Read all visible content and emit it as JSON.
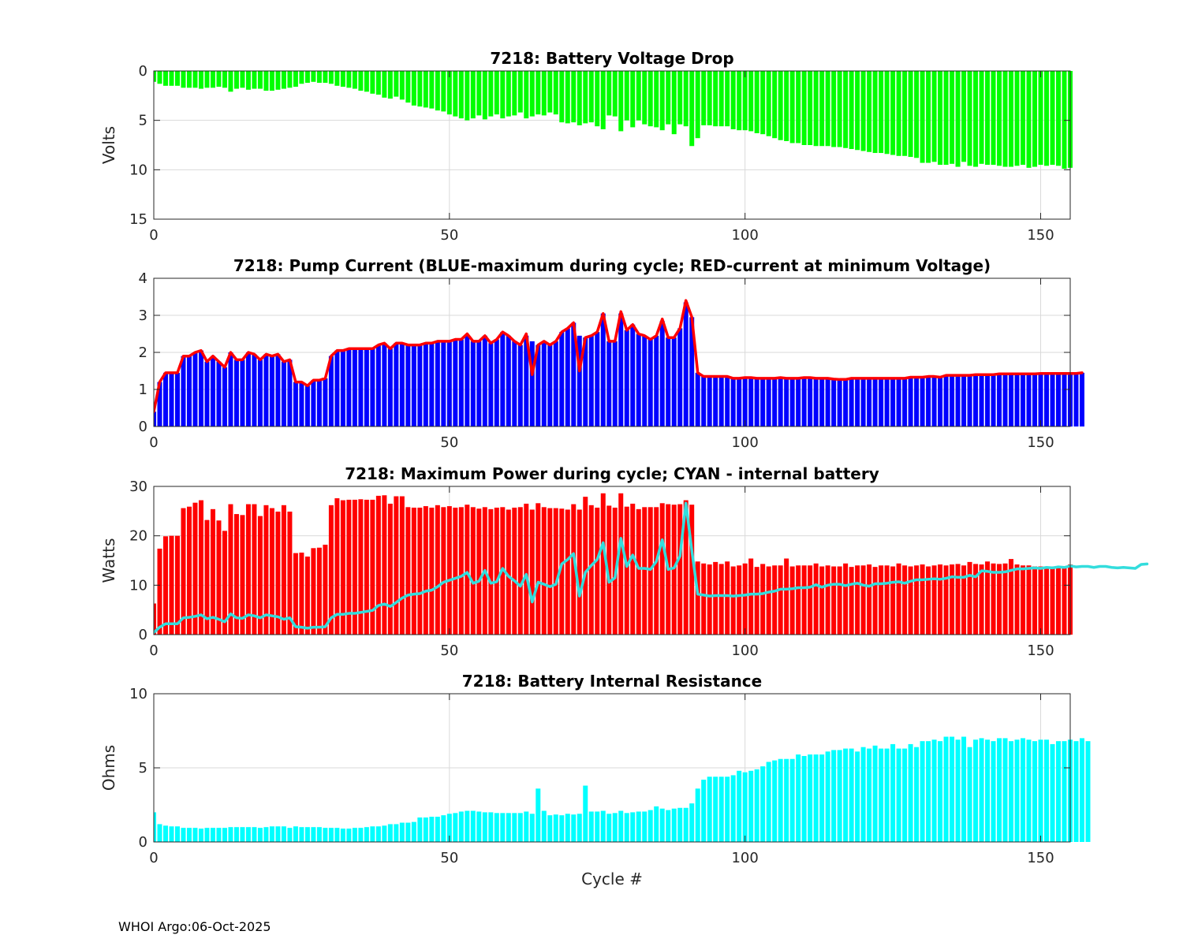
{
  "footer": "WHOI Argo:06-Oct-2025",
  "colors": {
    "green": "#00ff00",
    "blue": "#0000ff",
    "red": "#ff0000",
    "cyan": "#00ffff",
    "cyan_line": "#33dddd",
    "grid": "#d9d9d9"
  },
  "chart_data": [
    {
      "type": "bar",
      "title": "7218: Battery Voltage Drop",
      "ylabel": "Volts",
      "xlabel": "",
      "xlim": [
        0,
        155
      ],
      "ylim": [
        0,
        15
      ],
      "y_reversed": true,
      "xticks": [
        0,
        50,
        100,
        150
      ],
      "yticks": [
        0,
        5,
        10,
        15
      ],
      "grid": true,
      "color": "green",
      "series": [
        {
          "name": "voltage_drop",
          "values": [
            1.1,
            1.3,
            1.5,
            1.5,
            1.5,
            1.7,
            1.7,
            1.7,
            1.8,
            1.7,
            1.7,
            1.6,
            1.7,
            2.1,
            1.8,
            1.7,
            1.9,
            1.8,
            1.8,
            2.0,
            2.0,
            1.9,
            1.8,
            1.7,
            1.6,
            1.3,
            1.2,
            1.1,
            1.2,
            1.2,
            1.3,
            1.5,
            1.6,
            1.7,
            1.8,
            2.0,
            2.1,
            2.3,
            2.4,
            2.7,
            2.8,
            2.6,
            2.9,
            3.2,
            3.5,
            3.6,
            3.7,
            3.8,
            4.0,
            4.1,
            4.4,
            4.6,
            4.8,
            5.0,
            4.8,
            4.5,
            4.9,
            4.6,
            4.4,
            4.8,
            4.6,
            4.5,
            4.2,
            4.8,
            4.6,
            4.4,
            4.5,
            4.2,
            4.4,
            5.2,
            5.3,
            5.2,
            5.5,
            5.3,
            5.2,
            5.6,
            5.9,
            4.5,
            4.6,
            6.1,
            5.0,
            5.7,
            5.0,
            5.4,
            5.6,
            5.7,
            6.0,
            5.4,
            6.4,
            5.4,
            5.6,
            7.6,
            6.8,
            5.5,
            5.5,
            5.6,
            5.6,
            5.6,
            5.9,
            6.0,
            6.0,
            6.1,
            6.3,
            6.4,
            6.6,
            6.8,
            7.0,
            7.1,
            7.3,
            7.3,
            7.5,
            7.5,
            7.6,
            7.6,
            7.6,
            7.7,
            7.7,
            7.8,
            7.9,
            8.0,
            8.1,
            8.2,
            8.3,
            8.3,
            8.4,
            8.5,
            8.6,
            8.6,
            8.7,
            8.8,
            9.3,
            9.3,
            9.2,
            9.5,
            9.5,
            9.4,
            9.7,
            9.2,
            9.6,
            9.7,
            9.4,
            9.5,
            9.5,
            9.6,
            9.7,
            9.7,
            9.6,
            9.5,
            9.8,
            9.7,
            9.5,
            9.6,
            9.5,
            9.6,
            9.9,
            9.8
          ]
        }
      ]
    },
    {
      "type": "bar",
      "title": "7218: Pump Current (BLUE-maximum during cycle; RED-current at minimum Voltage)",
      "ylabel": "",
      "xlabel": "",
      "xlim": [
        0,
        155
      ],
      "ylim": [
        0,
        4
      ],
      "xticks": [
        0,
        50,
        100,
        150
      ],
      "yticks": [
        0,
        1,
        2,
        3,
        4
      ],
      "grid": true,
      "series": [
        {
          "name": "maximum during cycle",
          "color": "blue",
          "type": "bar",
          "values": [
            0.4,
            1.2,
            1.45,
            1.45,
            1.45,
            1.9,
            1.9,
            2.0,
            2.05,
            1.75,
            1.9,
            1.75,
            1.6,
            2.0,
            1.8,
            1.8,
            2.0,
            1.95,
            1.8,
            1.95,
            1.9,
            1.95,
            1.75,
            1.8,
            1.2,
            1.2,
            1.1,
            1.25,
            1.25,
            1.3,
            1.9,
            2.05,
            2.05,
            2.1,
            2.1,
            2.1,
            2.1,
            2.1,
            2.2,
            2.25,
            2.1,
            2.25,
            2.25,
            2.2,
            2.2,
            2.2,
            2.25,
            2.25,
            2.3,
            2.3,
            2.3,
            2.35,
            2.35,
            2.45,
            2.3,
            2.3,
            2.45,
            2.25,
            2.35,
            2.55,
            2.45,
            2.3,
            2.2,
            2.45,
            2.3,
            2.2,
            2.3,
            2.2,
            2.3,
            2.55,
            2.65,
            2.8,
            2.45,
            2.4,
            2.45,
            2.55,
            3.05,
            2.3,
            2.3,
            3.05,
            2.6,
            2.75,
            2.5,
            2.45,
            2.35,
            2.45,
            2.85,
            2.4,
            2.4,
            2.65,
            3.35,
            2.95,
            1.45,
            1.35,
            1.35,
            1.35,
            1.35,
            1.35,
            1.3,
            1.3,
            1.32,
            1.32,
            1.3,
            1.3,
            1.3,
            1.3,
            1.32,
            1.3,
            1.3,
            1.3,
            1.32,
            1.32,
            1.3,
            1.3,
            1.3,
            1.28,
            1.27,
            1.27,
            1.3,
            1.3,
            1.3,
            1.3,
            1.3,
            1.3,
            1.3,
            1.3,
            1.3,
            1.3,
            1.33,
            1.33,
            1.33,
            1.35,
            1.35,
            1.33,
            1.38,
            1.38,
            1.38,
            1.38,
            1.38,
            1.4,
            1.4,
            1.4,
            1.4,
            1.42,
            1.42,
            1.42,
            1.42,
            1.42,
            1.42,
            1.42,
            1.43,
            1.43,
            1.43,
            1.43,
            1.43,
            1.43,
            1.43,
            1.45
          ]
        },
        {
          "name": "current at minimum Voltage",
          "color": "red",
          "type": "line",
          "values": [
            0.4,
            1.2,
            1.45,
            1.45,
            1.45,
            1.9,
            1.9,
            2.0,
            2.05,
            1.75,
            1.9,
            1.75,
            1.6,
            2.0,
            1.8,
            1.8,
            2.0,
            1.95,
            1.8,
            1.95,
            1.9,
            1.95,
            1.75,
            1.8,
            1.2,
            1.2,
            1.1,
            1.25,
            1.25,
            1.3,
            1.9,
            2.05,
            2.05,
            2.1,
            2.1,
            2.1,
            2.1,
            2.1,
            2.2,
            2.25,
            2.1,
            2.25,
            2.25,
            2.2,
            2.2,
            2.2,
            2.25,
            2.25,
            2.3,
            2.3,
            2.3,
            2.35,
            2.35,
            2.5,
            2.3,
            2.3,
            2.45,
            2.25,
            2.35,
            2.55,
            2.45,
            2.3,
            2.2,
            2.5,
            1.4,
            2.2,
            2.3,
            2.2,
            2.3,
            2.55,
            2.65,
            2.8,
            1.5,
            2.4,
            2.45,
            2.55,
            3.05,
            2.3,
            2.3,
            3.1,
            2.6,
            2.75,
            2.5,
            2.45,
            2.35,
            2.45,
            2.9,
            2.4,
            2.4,
            2.65,
            3.4,
            2.95,
            1.45,
            1.35,
            1.35,
            1.35,
            1.35,
            1.35,
            1.3,
            1.3,
            1.32,
            1.32,
            1.3,
            1.3,
            1.3,
            1.3,
            1.32,
            1.3,
            1.3,
            1.3,
            1.32,
            1.32,
            1.3,
            1.3,
            1.3,
            1.28,
            1.27,
            1.27,
            1.3,
            1.3,
            1.3,
            1.3,
            1.3,
            1.3,
            1.3,
            1.3,
            1.3,
            1.3,
            1.33,
            1.33,
            1.33,
            1.35,
            1.35,
            1.33,
            1.38,
            1.38,
            1.38,
            1.38,
            1.38,
            1.4,
            1.4,
            1.4,
            1.4,
            1.42,
            1.42,
            1.42,
            1.42,
            1.42,
            1.42,
            1.42,
            1.43,
            1.43,
            1.43,
            1.43,
            1.43,
            1.43,
            1.43,
            1.45
          ]
        }
      ]
    },
    {
      "type": "bar",
      "title": "7218: Maximum Power during cycle; CYAN - internal battery",
      "ylabel": "Watts",
      "xlabel": "",
      "xlim": [
        0,
        155
      ],
      "ylim": [
        0,
        30
      ],
      "xticks": [
        0,
        50,
        100,
        150
      ],
      "yticks": [
        0,
        10,
        20,
        30
      ],
      "grid": true,
      "series": [
        {
          "name": "maximum power",
          "color": "red",
          "type": "bar",
          "values": [
            6.3,
            17.4,
            19.9,
            20.0,
            20.0,
            25.6,
            25.9,
            26.7,
            27.2,
            23.2,
            25.4,
            23.1,
            21.0,
            26.4,
            24.4,
            24.2,
            26.4,
            26.4,
            24.0,
            26.2,
            25.6,
            24.9,
            26.2,
            24.9,
            16.5,
            16.6,
            15.8,
            17.5,
            17.6,
            18.2,
            26.2,
            27.6,
            27.2,
            27.3,
            27.3,
            27.4,
            27.3,
            27.3,
            28.1,
            28.2,
            26.5,
            28.0,
            28.0,
            25.8,
            25.7,
            25.7,
            26.0,
            25.7,
            26.2,
            25.8,
            26.0,
            25.7,
            25.8,
            26.3,
            25.8,
            25.5,
            25.8,
            25.4,
            25.7,
            25.8,
            25.3,
            25.7,
            25.8,
            26.5,
            25.3,
            26.6,
            25.8,
            25.6,
            25.6,
            25.5,
            25.3,
            26.4,
            25.3,
            27.9,
            26.2,
            25.7,
            28.6,
            26.1,
            25.7,
            28.6,
            25.9,
            26.5,
            25.4,
            25.8,
            25.8,
            25.8,
            26.6,
            26.4,
            26.3,
            26.4,
            27.2,
            26.3,
            14.8,
            14.4,
            14.2,
            14.7,
            14.3,
            14.8,
            13.8,
            14.0,
            14.4,
            15.4,
            13.7,
            14.3,
            13.8,
            14.0,
            14.0,
            15.4,
            13.8,
            14.0,
            14.0,
            14.0,
            14.4,
            13.8,
            14.0,
            13.8,
            13.8,
            14.4,
            13.7,
            14.0,
            14.0,
            14.2,
            13.7,
            14.0,
            14.0,
            13.8,
            14.4,
            14.0,
            13.8,
            14.0,
            14.2,
            13.8,
            14.0,
            14.2,
            14.0,
            14.2,
            14.3,
            14.0,
            14.7,
            14.3,
            14.2,
            14.8,
            14.4,
            14.3,
            14.4,
            15.3,
            14.2,
            14.0,
            14.0,
            13.8,
            13.8,
            13.7,
            13.8,
            13.5,
            13.7,
            14.2
          ]
        },
        {
          "name": "internal battery",
          "color": "cyan_line",
          "type": "line",
          "values": [
            0.4,
            1.5,
            2.2,
            2.2,
            2.2,
            3.4,
            3.5,
            3.7,
            4.0,
            3.2,
            3.5,
            3.1,
            2.6,
            4.2,
            3.4,
            3.3,
            4.0,
            3.8,
            3.4,
            4.0,
            3.8,
            3.6,
            3.1,
            3.4,
            1.6,
            1.5,
            1.3,
            1.5,
            1.5,
            1.6,
            3.4,
            4.1,
            4.1,
            4.3,
            4.3,
            4.5,
            4.7,
            4.9,
            5.9,
            6.2,
            5.7,
            6.5,
            7.4,
            8.0,
            8.2,
            8.3,
            8.8,
            9.0,
            9.7,
            10.6,
            11.0,
            11.4,
            11.8,
            12.6,
            10.4,
            10.8,
            13.0,
            10.4,
            10.7,
            13.4,
            11.8,
            10.9,
            9.8,
            12.2,
            6.6,
            10.6,
            10.2,
            9.7,
            10.2,
            14.3,
            15.2,
            16.4,
            7.8,
            12.6,
            14.0,
            15.2,
            18.6,
            10.6,
            11.5,
            19.5,
            13.8,
            16.1,
            13.4,
            13.4,
            13.2,
            14.8,
            19.2,
            13.2,
            13.5,
            15.9,
            26.6,
            17.0,
            8.2,
            8.0,
            7.8,
            7.9,
            7.9,
            7.9,
            7.8,
            7.9,
            8.0,
            8.2,
            8.2,
            8.3,
            8.6,
            8.8,
            9.2,
            9.2,
            9.3,
            9.5,
            9.5,
            9.6,
            10.1,
            9.6,
            10.0,
            10.2,
            10.2,
            9.9,
            10.2,
            10.4,
            10.0,
            9.8,
            10.3,
            10.3,
            10.4,
            10.6,
            10.7,
            10.4,
            10.8,
            11.1,
            11.1,
            11.2,
            11.3,
            11.2,
            11.4,
            11.7,
            11.6,
            11.6,
            12.0,
            11.7,
            12.9,
            12.8,
            12.6,
            12.6,
            12.7,
            13.0,
            13.3,
            13.3,
            13.4,
            13.5,
            13.4,
            13.6,
            13.5,
            13.7,
            13.6,
            13.9,
            13.7,
            13.8,
            13.8,
            13.6,
            13.8,
            13.8,
            13.6,
            13.5,
            13.6,
            13.5,
            13.4,
            14.2,
            14.3
          ]
        }
      ]
    },
    {
      "type": "bar",
      "title": "7218: Battery Internal Resistance",
      "ylabel": "Ohms",
      "xlabel": "Cycle #",
      "xlim": [
        0,
        155
      ],
      "ylim": [
        0,
        10
      ],
      "xticks": [
        0,
        50,
        100,
        150
      ],
      "yticks": [
        0,
        5,
        10
      ],
      "grid": true,
      "color": "cyan",
      "series": [
        {
          "name": "internal_resistance",
          "values": [
            2.0,
            1.2,
            1.1,
            1.05,
            1.05,
            0.95,
            0.95,
            0.95,
            0.9,
            0.95,
            0.95,
            0.95,
            0.95,
            1.0,
            1.0,
            1.0,
            1.0,
            1.0,
            0.95,
            1.0,
            1.05,
            1.05,
            1.05,
            0.95,
            1.05,
            1.0,
            1.0,
            1.0,
            1.0,
            0.95,
            0.95,
            0.95,
            0.9,
            0.9,
            0.95,
            0.95,
            1.0,
            1.05,
            1.05,
            1.1,
            1.2,
            1.2,
            1.3,
            1.3,
            1.35,
            1.65,
            1.65,
            1.7,
            1.7,
            1.8,
            1.9,
            1.95,
            2.05,
            2.1,
            2.1,
            2.05,
            2.0,
            2.0,
            1.95,
            1.95,
            1.95,
            1.95,
            1.95,
            2.05,
            1.9,
            3.6,
            2.1,
            1.8,
            1.85,
            1.8,
            1.9,
            1.85,
            1.9,
            3.8,
            2.05,
            2.05,
            2.1,
            1.9,
            1.95,
            2.1,
            1.95,
            2.0,
            2.05,
            2.05,
            2.15,
            2.4,
            2.25,
            2.15,
            2.25,
            2.3,
            2.3,
            2.6,
            3.6,
            4.2,
            4.4,
            4.4,
            4.4,
            4.4,
            4.5,
            4.8,
            4.7,
            4.8,
            4.9,
            5.1,
            5.4,
            5.5,
            5.6,
            5.6,
            5.6,
            5.9,
            5.8,
            5.9,
            5.9,
            5.9,
            6.1,
            6.2,
            6.2,
            6.3,
            6.3,
            6.1,
            6.4,
            6.3,
            6.5,
            6.3,
            6.3,
            6.6,
            6.3,
            6.3,
            6.6,
            6.4,
            6.8,
            6.8,
            6.9,
            6.8,
            7.1,
            7.1,
            6.9,
            7.1,
            6.4,
            6.9,
            7.0,
            6.9,
            6.8,
            7.0,
            7.0,
            6.8,
            6.9,
            7.0,
            6.9,
            6.8,
            6.9,
            6.9,
            6.6,
            6.8,
            6.8,
            6.9,
            6.8,
            7.0,
            6.8
          ]
        }
      ]
    }
  ]
}
